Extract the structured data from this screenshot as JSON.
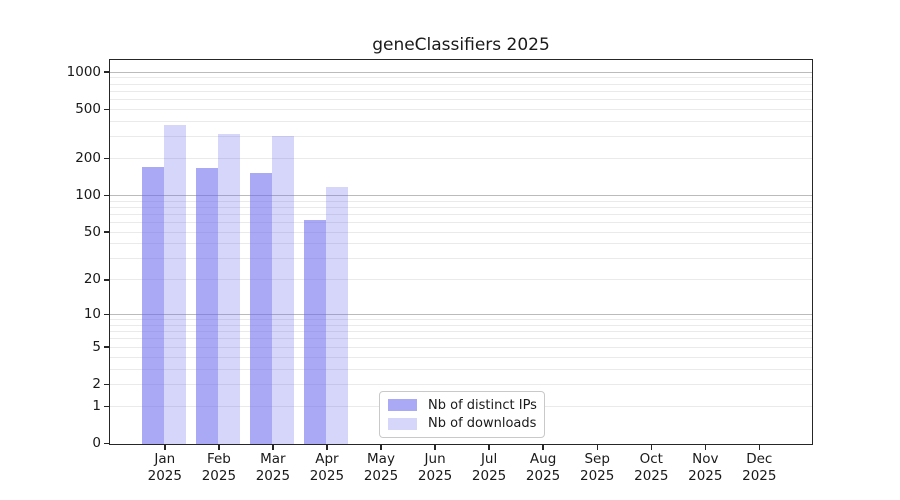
{
  "title": "geneClassifiers 2025",
  "chart_data": {
    "type": "bar",
    "title": "geneClassifiers 2025",
    "categories": [
      "Jan 2025",
      "Feb 2025",
      "Mar 2025",
      "Apr 2025",
      "May 2025",
      "Jun 2025",
      "Jul 2025",
      "Aug 2025",
      "Sep 2025",
      "Oct 2025",
      "Nov 2025",
      "Dec 2025"
    ],
    "x_tick_month": [
      "Jan",
      "Feb",
      "Mar",
      "Apr",
      "May",
      "Jun",
      "Jul",
      "Aug",
      "Sep",
      "Oct",
      "Nov",
      "Dec"
    ],
    "x_tick_year": "2025",
    "series": [
      {
        "name": "Nb of distinct IPs",
        "color": "rgba(102,102,238,0.56)",
        "values": [
          172,
          168,
          155,
          64,
          null,
          null,
          null,
          null,
          null,
          null,
          null,
          null
        ]
      },
      {
        "name": "Nb of downloads",
        "color": "rgba(102,102,238,0.27)",
        "values": [
          375,
          320,
          305,
          118,
          null,
          null,
          null,
          null,
          null,
          null,
          null,
          null
        ]
      }
    ],
    "yscale": "log10(1+v)",
    "ylim": [
      0,
      1240
    ],
    "yticks": [
      1000,
      500,
      200,
      100,
      50,
      20,
      10,
      5,
      2,
      1,
      0
    ],
    "major_grid_values": [
      10,
      100,
      1000
    ],
    "minor_grid_values": [
      1,
      2,
      3,
      4,
      5,
      6,
      7,
      8,
      9,
      20,
      30,
      40,
      50,
      60,
      70,
      80,
      90,
      200,
      300,
      400,
      500,
      600,
      700,
      800,
      900
    ],
    "grid": "both",
    "legend_position": "lower center inside"
  },
  "legend": {
    "items": [
      {
        "label": "Nb of distinct IPs"
      },
      {
        "label": "Nb of downloads"
      }
    ]
  },
  "colors": {
    "bar_primary": "rgba(102,102,238,0.56)",
    "bar_secondary": "rgba(102,102,238,0.27)",
    "grid_major": "#bbbbbb",
    "grid_minor": "#eaeaea",
    "spine": "#262626",
    "text": "#1a1a1a",
    "background": "#ffffff",
    "legend_border": "#c9c9c9"
  }
}
